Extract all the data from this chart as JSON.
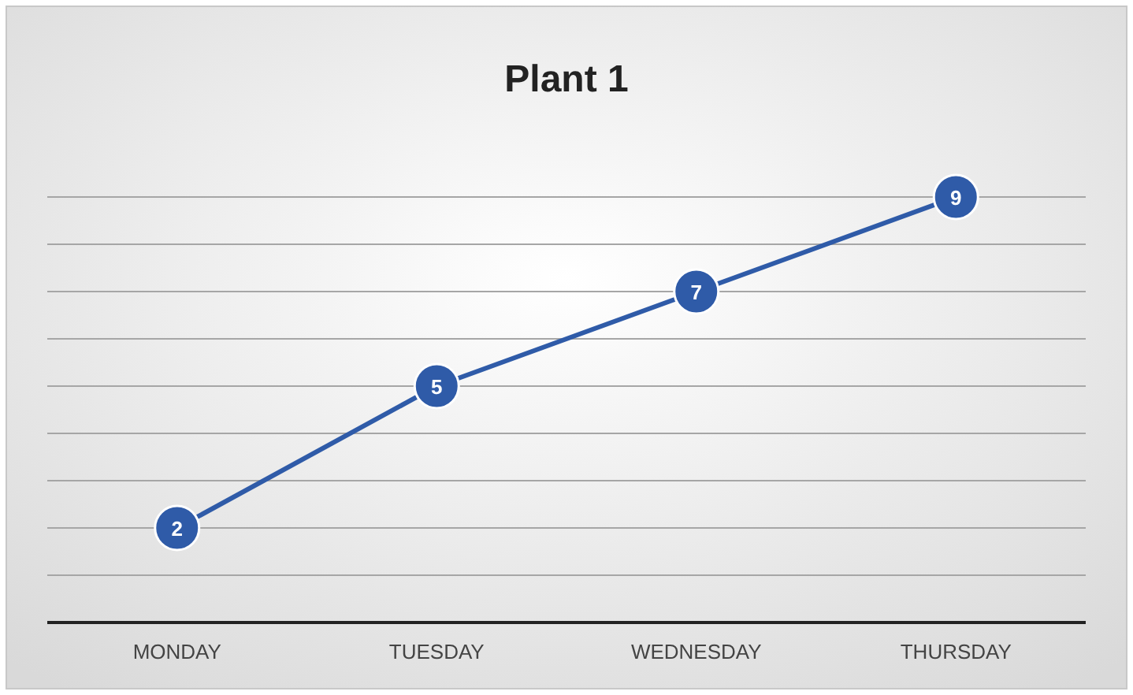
{
  "chart_data": {
    "type": "line",
    "title": "Plant 1",
    "categories": [
      "MONDAY",
      "TUESDAY",
      "WEDNESDAY",
      "THURSDAY"
    ],
    "series": [
      {
        "color": "#2f5ba8",
        "values": [
          2,
          5,
          7,
          9
        ]
      }
    ],
    "ylim": [
      0,
      9
    ],
    "yticks": [
      {
        "value": 0,
        "label": null
      },
      {
        "value": 1,
        "label": null
      },
      {
        "value": 2,
        "label": null
      },
      {
        "value": 3,
        "label": null
      },
      {
        "value": 4,
        "label": null
      },
      {
        "value": 5,
        "label": null
      },
      {
        "value": 6,
        "label": null
      },
      {
        "value": 7,
        "label": null
      },
      {
        "value": 8,
        "label": null
      },
      {
        "value": 9,
        "label": null
      }
    ],
    "tick_labels": "x",
    "grid": "y",
    "marker": "circle",
    "line_style": "solid",
    "data_labels": true
  }
}
